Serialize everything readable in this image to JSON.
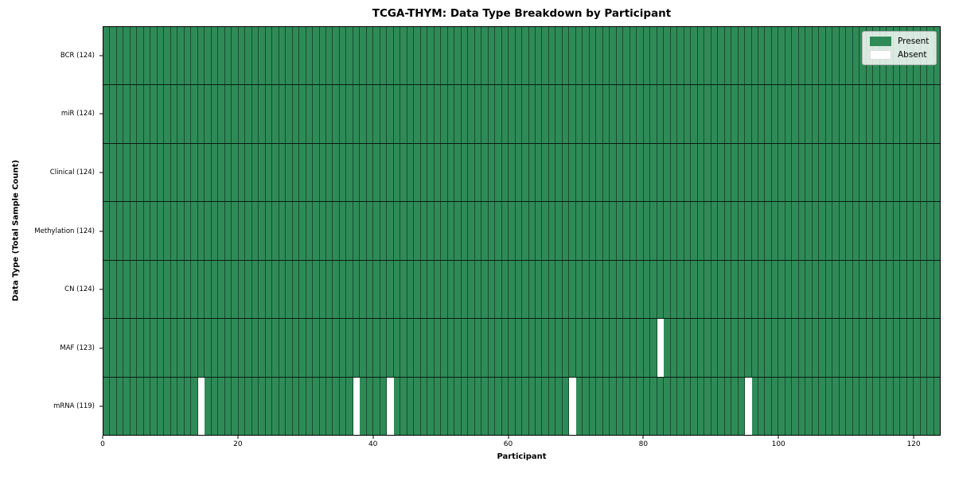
{
  "chart_data": {
    "type": "heatmap",
    "title": "TCGA-THYM: Data Type Breakdown by Participant",
    "xlabel": "Participant",
    "ylabel": "Data Type (Total Sample Count)",
    "xlim": [
      0,
      124
    ],
    "x_ticks": [
      0,
      20,
      40,
      60,
      80,
      100,
      120
    ],
    "n_participants": 124,
    "grid": "per-cell edges, black row separators",
    "legend_position": "upper right",
    "legend_items": [
      {
        "label": "Present",
        "color": "#2e8b57",
        "key": "present"
      },
      {
        "label": "Absent",
        "color": "#ffffff",
        "key": "absent"
      }
    ],
    "colors": {
      "present": "#2e8b57",
      "absent": "#ffffff",
      "cell_edge": "rgba(0,0,0,0.45)",
      "row_separator": "rgba(0,0,0,0.8)"
    },
    "rows": [
      {
        "data_type": "BCR",
        "label": "BCR (124)",
        "present_count": 124,
        "absent_count": 0,
        "absent_participants": []
      },
      {
        "data_type": "miR",
        "label": "miR (124)",
        "present_count": 124,
        "absent_count": 0,
        "absent_participants": []
      },
      {
        "data_type": "Clinical",
        "label": "Clinical (124)",
        "present_count": 124,
        "absent_count": 0,
        "absent_participants": []
      },
      {
        "data_type": "Methylation",
        "label": "Methylation (124)",
        "present_count": 124,
        "absent_count": 0,
        "absent_participants": []
      },
      {
        "data_type": "CN",
        "label": "CN (124)",
        "present_count": 124,
        "absent_count": 0,
        "absent_participants": []
      },
      {
        "data_type": "MAF",
        "label": "MAF (123)",
        "present_count": 123,
        "absent_count": 1,
        "absent_participants": [
          82
        ]
      },
      {
        "data_type": "mRNA",
        "label": "mRNA (119)",
        "present_count": 119,
        "absent_count": 5,
        "absent_participants": [
          14,
          37,
          42,
          69,
          95
        ]
      }
    ]
  }
}
